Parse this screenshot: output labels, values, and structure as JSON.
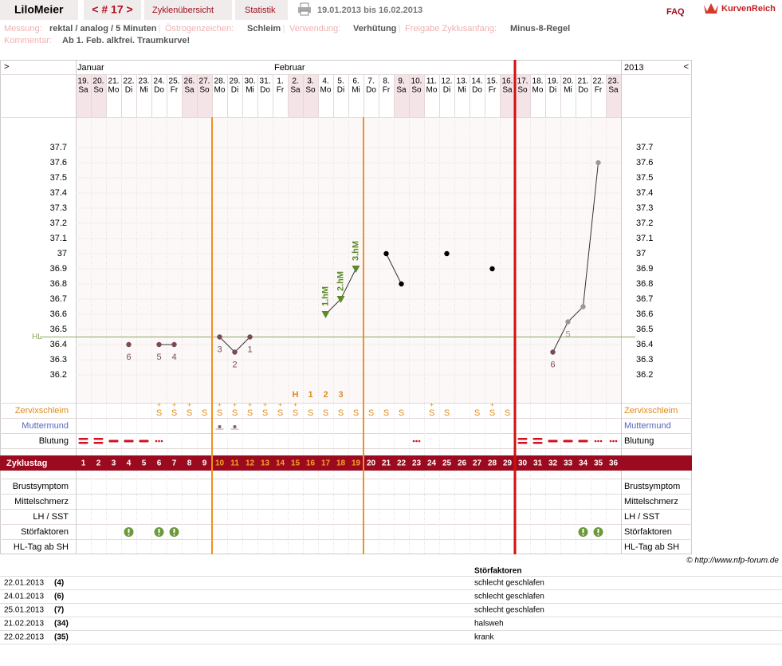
{
  "header": {
    "user": "LiloMeier",
    "cycle_nav": "< # 17 >",
    "tabs": [
      "Zyklenübersicht",
      "Statistik"
    ],
    "date_range": "19.01.2013 bis 16.02.2013",
    "faq": "FAQ",
    "brand": "KurvenReich"
  },
  "info": {
    "fields": [
      {
        "label": "Messung:",
        "value": "rektal / analog / 5 Minuten"
      },
      {
        "label": "Östrogenzeichen:",
        "value": "Schleim"
      },
      {
        "label": "Verwendung:",
        "value": "Verhütung"
      },
      {
        "label": "Freigabe Zyklusanfang:",
        "value": "Minus-8-Regel"
      }
    ],
    "comment": {
      "label": "Kommentar:",
      "value": "Ab 1. Feb. alkfrei. Traumkurve!"
    }
  },
  "chart_data": {
    "type": "line",
    "nav_left": ">",
    "nav_right": "<",
    "year": "2013",
    "months": [
      "Januar",
      null,
      null,
      null,
      null,
      null,
      null,
      null,
      null,
      null,
      null,
      null,
      null,
      "Februar",
      null,
      null,
      null,
      null,
      null,
      null,
      null,
      null,
      null,
      null,
      null,
      null,
      null,
      null,
      null,
      null,
      null,
      null,
      null,
      null,
      null,
      null
    ],
    "dates": [
      "19.",
      "20.",
      "21.",
      "22.",
      "23.",
      "24.",
      "25.",
      "26.",
      "27.",
      "28.",
      "29.",
      "30.",
      "31.",
      "1.",
      "2.",
      "3.",
      "4.",
      "5.",
      "6.",
      "7.",
      "8.",
      "9.",
      "10.",
      "11.",
      "12.",
      "13.",
      "14.",
      "15.",
      "16.",
      "17.",
      "18.",
      "19.",
      "20.",
      "21.",
      "22.",
      "23."
    ],
    "weekdays": [
      "Sa",
      "So",
      "Mo",
      "Di",
      "Mi",
      "Do",
      "Fr",
      "Sa",
      "So",
      "Mo",
      "Di",
      "Mi",
      "Do",
      "Fr",
      "Sa",
      "So",
      "Mo",
      "Di",
      "Mi",
      "Do",
      "Fr",
      "Sa",
      "So",
      "Mo",
      "Di",
      "Mi",
      "Do",
      "Fr",
      "Sa",
      "So",
      "Mo",
      "Di",
      "Mi",
      "Do",
      "Fr",
      "Sa"
    ],
    "shaded": [
      true,
      true,
      false,
      false,
      false,
      false,
      false,
      true,
      true,
      false,
      false,
      false,
      false,
      false,
      true,
      true,
      false,
      false,
      false,
      false,
      false,
      true,
      true,
      false,
      false,
      false,
      false,
      false,
      true,
      true,
      false,
      false,
      false,
      false,
      false,
      true
    ],
    "x": [
      1,
      2,
      3,
      4,
      5,
      6,
      7,
      8,
      9,
      10,
      11,
      12,
      13,
      14,
      15,
      16,
      17,
      18,
      19,
      20,
      21,
      22,
      23,
      24,
      25,
      26,
      27,
      28,
      29,
      30,
      31,
      32,
      33,
      34,
      35,
      36
    ],
    "values": [
      null,
      null,
      null,
      36.4,
      null,
      36.4,
      36.4,
      null,
      null,
      36.45,
      36.35,
      36.45,
      null,
      null,
      null,
      null,
      36.6,
      36.7,
      36.9,
      null,
      37,
      36.8,
      null,
      null,
      37,
      null,
      null,
      36.9,
      null,
      null,
      null,
      36.35,
      36.55,
      36.65,
      37.6,
      null
    ],
    "marker_colors": [
      null,
      null,
      null,
      "#7a4a55",
      null,
      "#7a4a55",
      "#7a4a55",
      null,
      null,
      "#7a4a55",
      "#7a4a55",
      "#7a4a55",
      null,
      null,
      null,
      null,
      "#5a8a2a",
      "#5a8a2a",
      "#5a8a2a",
      null,
      "#000000",
      "#000000",
      null,
      null,
      "#000000",
      null,
      null,
      "#000000",
      null,
      null,
      null,
      "#7a4a55",
      "#999999",
      "#999999",
      "#999999",
      null
    ],
    "line_color": "#333333",
    "point_labels": [
      null,
      null,
      null,
      "6",
      null,
      "5",
      "4",
      null,
      null,
      "3",
      "2",
      "1",
      null,
      null,
      null,
      null,
      null,
      null,
      null,
      null,
      null,
      null,
      null,
      null,
      null,
      null,
      null,
      null,
      null,
      null,
      null,
      "6",
      "5",
      null,
      null,
      null
    ],
    "high_labels": [
      null,
      null,
      null,
      null,
      null,
      null,
      null,
      null,
      null,
      null,
      null,
      null,
      null,
      null,
      null,
      null,
      "1.hM",
      "2.hM",
      "3.hM",
      null,
      null,
      null,
      null,
      null,
      null,
      null,
      null,
      null,
      null,
      null,
      null,
      null,
      null,
      null,
      null,
      null
    ],
    "peak_row": [
      null,
      null,
      null,
      null,
      null,
      null,
      null,
      null,
      null,
      null,
      null,
      null,
      null,
      null,
      "H",
      "1",
      "2",
      "3",
      null,
      null,
      null,
      null,
      null,
      null,
      null,
      null,
      null,
      null,
      null,
      null,
      null,
      null,
      null,
      null,
      null,
      null
    ],
    "ylim": [
      36.0,
      37.9
    ],
    "yticks": [
      36.2,
      36.3,
      36.4,
      36.5,
      36.6,
      36.7,
      36.8,
      36.9,
      37,
      37.1,
      37.2,
      37.3,
      37.4,
      37.5,
      37.6,
      37.7
    ],
    "grid": true,
    "hl": {
      "label": "HL",
      "value": 36.45,
      "color": "#8aa860"
    },
    "fertile": [
      10,
      19
    ],
    "cycle_end": 29,
    "rows": {
      "cervix": {
        "label": "Zervixschleim",
        "color": "#e08a1a",
        "cells": [
          null,
          null,
          null,
          null,
          null,
          {
            "sign": "S",
            "top": "+"
          },
          {
            "sign": "S",
            "top": "+"
          },
          {
            "sign": "S",
            "top": "+"
          },
          {
            "sign": "S"
          },
          {
            "sign": "S",
            "top": "+"
          },
          {
            "sign": "S",
            "top": "+"
          },
          {
            "sign": "S",
            "top": "+"
          },
          {
            "sign": "S",
            "top": "+"
          },
          {
            "sign": "S",
            "top": "+"
          },
          {
            "sign": "S",
            "top": "+"
          },
          {
            "sign": "S"
          },
          {
            "sign": "S"
          },
          {
            "sign": "S"
          },
          {
            "sign": "S"
          },
          {
            "sign": "S"
          },
          {
            "sign": "S"
          },
          {
            "sign": "S"
          },
          null,
          {
            "sign": "S",
            "top": "+"
          },
          {
            "sign": "S"
          },
          null,
          {
            "sign": "S"
          },
          {
            "sign": "S",
            "top": "+"
          },
          {
            "sign": "S"
          },
          null,
          null,
          null,
          null,
          null,
          null,
          null
        ]
      },
      "cervix_os": {
        "label": "Muttermund",
        "color": "#5566bb",
        "cells": [
          null,
          null,
          null,
          null,
          null,
          null,
          null,
          null,
          null,
          "closed",
          "closed",
          null,
          null,
          null,
          null,
          null,
          null,
          null,
          null,
          null,
          null,
          null,
          null,
          null,
          null,
          null,
          null,
          null,
          null,
          null,
          null,
          null,
          null,
          null,
          null,
          null
        ]
      },
      "bleeding": {
        "label": "Blutung",
        "color": "#d01020",
        "cells": [
          "heavy",
          "heavy",
          "medium",
          "medium",
          "medium",
          "spotting",
          null,
          null,
          null,
          null,
          null,
          null,
          null,
          null,
          null,
          null,
          null,
          null,
          null,
          null,
          null,
          null,
          "spotting",
          null,
          null,
          null,
          null,
          null,
          null,
          "heavy",
          "heavy",
          "medium",
          "medium",
          "medium",
          "spotting",
          "spotting"
        ]
      },
      "cycle_day": {
        "label": "Zyklustag"
      },
      "extra": [
        "Brustsymptom",
        "Mittelschmerz",
        "LH / SST",
        "Störfaktoren",
        "HL-Tag ab SH"
      ],
      "disturbances": [
        false,
        false,
        false,
        true,
        false,
        true,
        true,
        false,
        false,
        false,
        false,
        false,
        false,
        false,
        false,
        false,
        false,
        false,
        false,
        false,
        false,
        false,
        false,
        false,
        false,
        false,
        false,
        false,
        false,
        false,
        false,
        false,
        false,
        true,
        true,
        false
      ]
    }
  },
  "footer": {
    "copyright": "© http://www.nfp-forum.de",
    "table": {
      "title": "Störfaktoren",
      "rows": [
        [
          "22.01.2013",
          "(4)",
          "schlecht geschlafen"
        ],
        [
          "24.01.2013",
          "(6)",
          "schlecht geschlafen"
        ],
        [
          "25.01.2013",
          "(7)",
          "schlecht geschlafen"
        ],
        [
          "21.02.2013",
          "(34)",
          "halsweh"
        ],
        [
          "22.02.2013",
          "(35)",
          "krank"
        ]
      ]
    }
  }
}
